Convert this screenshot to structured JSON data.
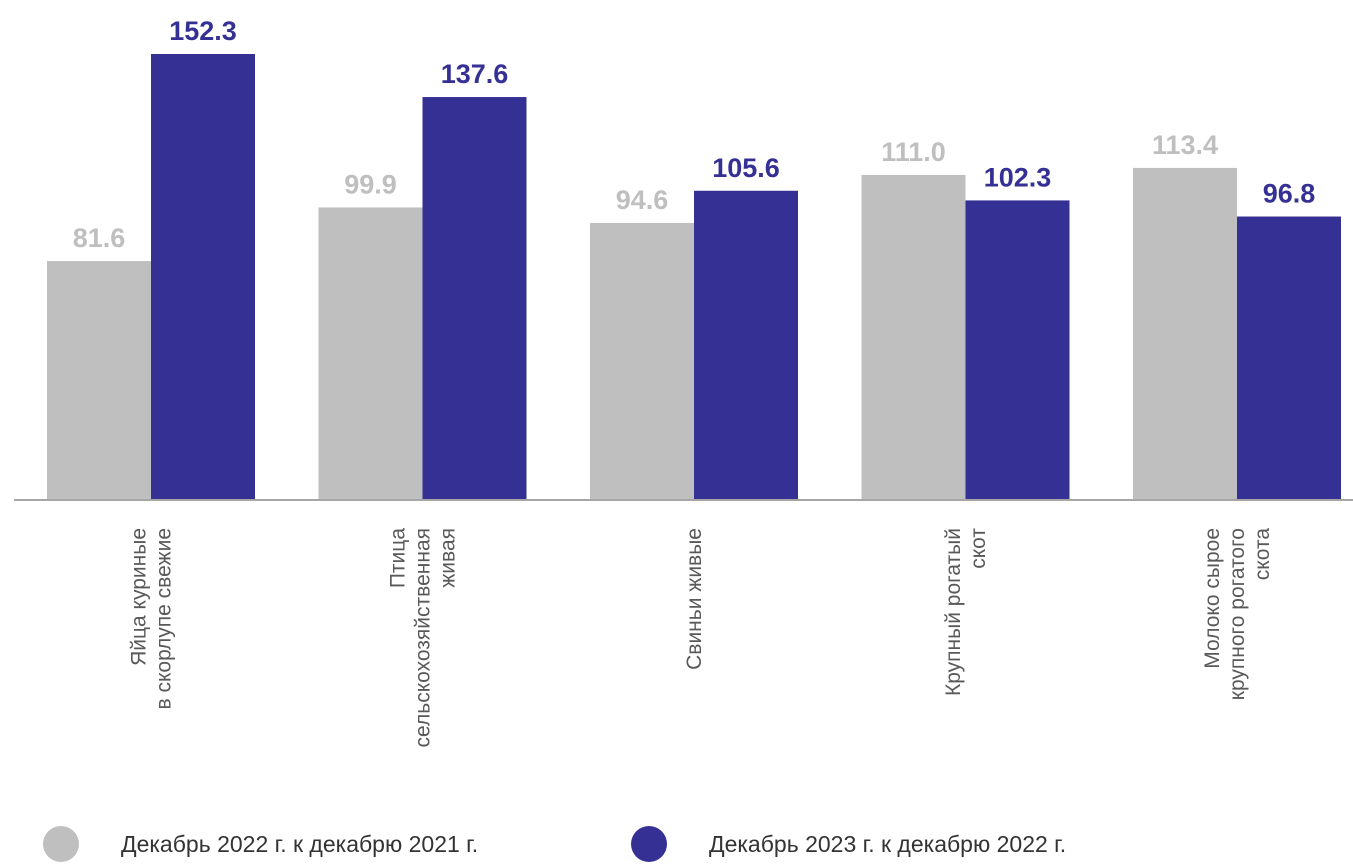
{
  "chart_data": {
    "type": "bar",
    "categories": [
      [
        "Яйца куриные",
        "в скорлупе свежие"
      ],
      [
        "Птица",
        "сельскохозяйственная",
        "живая"
      ],
      [
        "Свиньи живые"
      ],
      [
        "Крупный рогатый",
        "скот"
      ],
      [
        "Молоко сырое",
        "крупного рогатого",
        "скота"
      ]
    ],
    "series": [
      {
        "name": "Декабрь 2022 г. к декабрю 2021 г.",
        "values": [
          81.6,
          99.9,
          94.6,
          111.0,
          113.4
        ],
        "color": "#bfbfbf"
      },
      {
        "name": "Декабрь 2023 г. к декабрю 2022 г.",
        "values": [
          152.3,
          137.6,
          105.6,
          102.3,
          96.8
        ],
        "color": "#353093"
      }
    ],
    "ylim": [
      0,
      152.3
    ],
    "value_labels": true,
    "legend_position": "bottom",
    "grid": false
  }
}
